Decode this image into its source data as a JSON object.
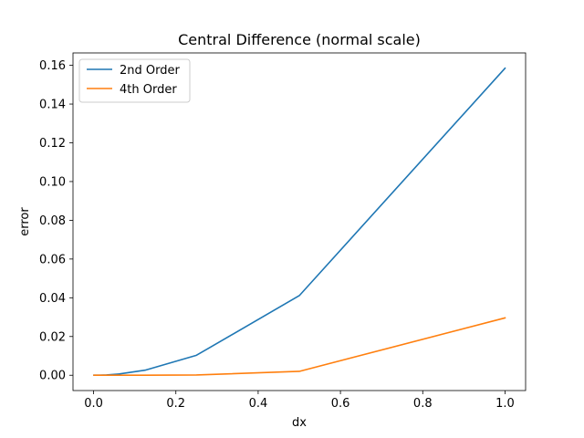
{
  "chart_data": {
    "type": "line",
    "title": "Central Difference (normal scale)",
    "xlabel": "dx",
    "ylabel": "error",
    "xlim": [
      -0.05,
      1.05
    ],
    "ylim": [
      -0.0079,
      0.1664
    ],
    "xticks": [
      0.0,
      0.2,
      0.4,
      0.6,
      0.8,
      1.0
    ],
    "xtick_labels": [
      "0.0",
      "0.2",
      "0.4",
      "0.6",
      "0.8",
      "1.0"
    ],
    "yticks": [
      0.0,
      0.02,
      0.04,
      0.06,
      0.08,
      0.1,
      0.12,
      0.14,
      0.16
    ],
    "ytick_labels": [
      "0.00",
      "0.02",
      "0.04",
      "0.06",
      "0.08",
      "0.10",
      "0.12",
      "0.14",
      "0.16"
    ],
    "grid": false,
    "legend_position": "top-left",
    "series": [
      {
        "name": "2nd Order",
        "color": "#1f77b4",
        "x": [
          0.0009765625,
          0.001953125,
          0.00390625,
          0.0078125,
          0.015625,
          0.03125,
          0.0625,
          0.125,
          0.25,
          0.5,
          1.0
        ],
        "y": [
          2e-07,
          6e-07,
          2.5e-06,
          1e-05,
          4e-05,
          0.00016,
          0.00065,
          0.0026,
          0.0103,
          0.0411,
          0.1585
        ]
      },
      {
        "name": "4th Order",
        "color": "#ff7f0e",
        "x": [
          0.0009765625,
          0.001953125,
          0.00390625,
          0.0078125,
          0.015625,
          0.03125,
          0.0625,
          0.125,
          0.25,
          0.5,
          1.0
        ],
        "y": [
          0.0,
          0.0,
          0.0,
          0.0,
          0.0,
          1e-06,
          1e-05,
          3e-05,
          0.00013,
          0.002,
          0.0296
        ]
      }
    ]
  }
}
